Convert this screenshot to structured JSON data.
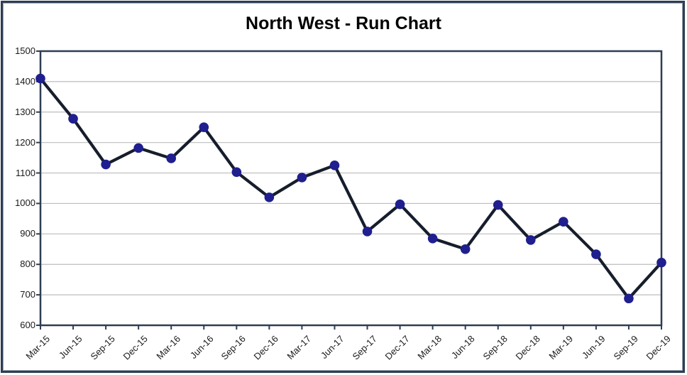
{
  "chart_data": {
    "type": "line",
    "title": "North West - Run Chart",
    "categories": [
      "Mar-15",
      "Jun-15",
      "Sep-15",
      "Dec-15",
      "Mar-16",
      "Jun-16",
      "Sep-16",
      "Dec-16",
      "Mar-17",
      "Jun-17",
      "Sep-17",
      "Dec-17",
      "Mar-18",
      "Jun-18",
      "Sep-18",
      "Dec-18",
      "Mar-19",
      "Jun-19",
      "Sep-19",
      "Dec-19"
    ],
    "values": [
      1410,
      1278,
      1128,
      1182,
      1148,
      1250,
      1103,
      1020,
      1085,
      1125,
      908,
      997,
      885,
      850,
      995,
      880,
      940,
      833,
      688,
      806
    ],
    "ylim": [
      600,
      1500
    ],
    "ytick_step": 100,
    "ytick_labels": [
      "600",
      "700",
      "800",
      "900",
      "1000",
      "1100",
      "1200",
      "1300",
      "1400",
      "1500"
    ],
    "xlabel": "",
    "ylabel": "",
    "grid": true,
    "legend": "none",
    "x_label_rotation_deg": 45,
    "colors": {
      "series_line": "#161D2B",
      "marker_fill": "#1F1F8F",
      "axis": "#2E3D52",
      "gridline": "#BDBDBD",
      "title_text": "#000000",
      "axis_text": "#1A1A1A",
      "background": "#FFFFFF",
      "frame_border": "#2E3D52"
    }
  }
}
